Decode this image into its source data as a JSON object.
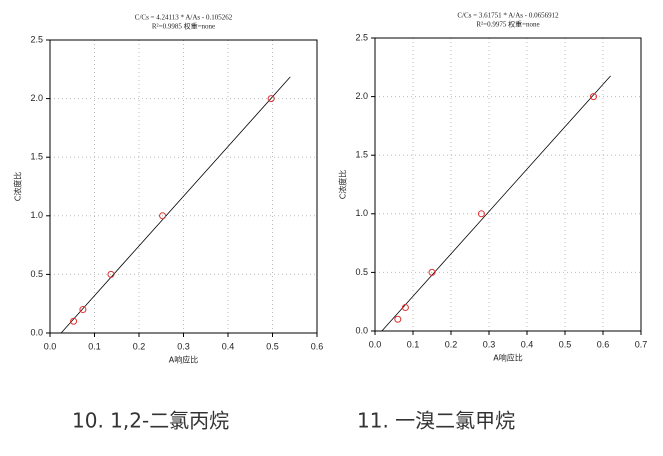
{
  "chart_data": [
    {
      "type": "scatter",
      "title": "C/Cs = 4.24113 * A/As - 0.105262",
      "subtitle": "R²=0.9985 权重=none",
      "x_label": "A响应比",
      "y_label": "C浓度比",
      "x": [
        0.053,
        0.074,
        0.137,
        0.253,
        0.497
      ],
      "values": [
        0.1,
        0.2,
        0.5,
        1.0,
        2.0
      ],
      "color": "#e03030",
      "fit_line": {
        "x": [
          0.025,
          0.54
        ],
        "y": [
          0,
          2.185
        ],
        "color": "#000000"
      },
      "xlim": [
        0,
        0.6
      ],
      "ylim": [
        0,
        2.5
      ],
      "xticks": [
        {
          "value": 0,
          "label": "0.0"
        },
        0.1,
        0.2,
        0.3,
        0.4,
        0.5,
        0.6
      ],
      "yticks": [
        {
          "value": 0,
          "label": "0.0"
        },
        0.5,
        {
          "value": 1,
          "label": "1.0"
        },
        1.5,
        {
          "value": 2,
          "label": "2.0"
        },
        2.5
      ],
      "grid": true
    },
    {
      "type": "scatter",
      "title": "C/Cs = 3.61751 * A/As - 0.0656912",
      "subtitle": "R²=0.9975 权重=none",
      "x_label": "A响应比",
      "y_label": "C浓度比",
      "x": [
        0.06,
        0.08,
        0.15,
        0.28,
        0.575
      ],
      "values": [
        0.1,
        0.2,
        0.5,
        1.0,
        2.0
      ],
      "color": "#e03030",
      "fit_line": {
        "x": [
          0.018,
          0.62
        ],
        "y": [
          0,
          2.177
        ],
        "color": "#000000"
      },
      "xlim": [
        0,
        0.7
      ],
      "ylim": [
        0,
        2.5
      ],
      "xticks": [
        {
          "value": 0,
          "label": "0.0"
        },
        0.1,
        0.2,
        0.3,
        0.4,
        0.5,
        0.6,
        0.7
      ],
      "yticks": [
        {
          "value": 0,
          "label": "0.0"
        },
        0.5,
        {
          "value": 1,
          "label": "1.0"
        },
        1.5,
        {
          "value": 2,
          "label": "2.0"
        },
        2.5
      ],
      "grid": true
    }
  ],
  "captions": [
    "10.   1,2-二氯丙烷",
    "11. 一溴二氯甲烷"
  ]
}
